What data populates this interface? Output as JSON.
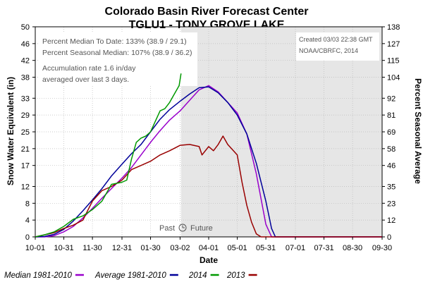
{
  "header": {
    "title": "Colorado Basin River Forecast Center",
    "subtitle": "TGLU1 - TONY GROVE LAKE"
  },
  "info_left": {
    "line1": "Percent Median To Date: 133% (38.9 / 29.1)",
    "line2": "Percent Seasonal Median: 107% (38.9 / 36.2)",
    "line3": "Accumulation rate 1.6 in/day",
    "line4": "averaged over last 3 days."
  },
  "info_right": {
    "line1": "Created 03/03 22:38 GMT",
    "line2": "NOAA/CBRFC, 2014"
  },
  "past_future": {
    "past": "Past",
    "future": "Future"
  },
  "colors": {
    "median": "#9900cc",
    "average": "#000099",
    "2014": "#009900",
    "2013": "#990000",
    "future_shade": "#e6e6e6"
  },
  "chart_data": {
    "type": "line",
    "xlabel": "Date",
    "ylabel": "Snow Water Equivalent (in)",
    "y2label": "Percent Seasonal Average",
    "xlim": [
      "10-01",
      "09-30"
    ],
    "ylim": [
      0,
      50
    ],
    "y2lim": [
      0,
      138
    ],
    "x_ticks": [
      "10-01",
      "10-31",
      "11-30",
      "12-31",
      "01-30",
      "03-02",
      "04-01",
      "05-01",
      "05-31",
      "07-01",
      "07-31",
      "08-30",
      "09-30"
    ],
    "x_tick_days": [
      0,
      30,
      60,
      91,
      121,
      152,
      182,
      212,
      242,
      273,
      303,
      333,
      364
    ],
    "y_ticks": [
      0,
      4,
      8,
      12,
      17,
      21,
      25,
      29,
      33,
      38,
      42,
      46,
      50
    ],
    "y2_ticks": [
      0,
      12,
      23,
      35,
      46,
      58,
      69,
      81,
      92,
      104,
      115,
      127,
      138
    ],
    "past_future_split": "03-03",
    "grid": true,
    "legend_position": "bottom",
    "series": [
      {
        "name": "Median 1981-2010",
        "x": [
          "10-01",
          "10-11",
          "10-21",
          "10-31",
          "11-10",
          "11-20",
          "11-30",
          "12-10",
          "12-20",
          "12-31",
          "01-10",
          "01-20",
          "01-30",
          "02-09",
          "02-19",
          "03-02",
          "03-12",
          "03-22",
          "04-01",
          "04-11",
          "04-21",
          "05-01",
          "05-11",
          "05-21",
          "05-31",
          "06-06",
          "06-10",
          "06-20",
          "06-30",
          "07-10",
          "07-20",
          "07-30",
          "08-09",
          "08-19",
          "08-29",
          "09-08",
          "09-18",
          "09-30"
        ],
        "y": [
          0,
          0,
          0.3,
          1.2,
          2.5,
          4.5,
          6.8,
          9.2,
          11.5,
          14,
          16.5,
          19.5,
          22.5,
          25.3,
          27.8,
          30,
          32.5,
          35,
          36,
          34.5,
          32,
          29.5,
          24.5,
          15,
          3,
          0,
          0,
          0,
          0,
          0,
          0,
          0,
          0,
          0,
          0,
          0,
          0,
          0
        ]
      },
      {
        "name": "Average 1981-2010",
        "x": [
          "10-01",
          "10-11",
          "10-21",
          "10-31",
          "11-10",
          "11-20",
          "11-30",
          "12-10",
          "12-20",
          "12-31",
          "01-10",
          "01-20",
          "01-30",
          "02-09",
          "02-19",
          "03-02",
          "03-12",
          "03-22",
          "04-01",
          "04-11",
          "04-21",
          "05-01",
          "05-11",
          "05-21",
          "05-31",
          "06-06",
          "06-10",
          "06-20",
          "06-30",
          "07-10",
          "07-20",
          "07-30",
          "08-09",
          "08-19",
          "08-29",
          "09-08",
          "09-18",
          "09-30"
        ],
        "y": [
          0,
          0.1,
          0.6,
          1.8,
          3.8,
          6.2,
          8.8,
          11.5,
          14.5,
          17.3,
          19.8,
          22,
          25,
          28,
          30.3,
          32.3,
          34,
          35.5,
          35.7,
          34.3,
          32,
          29,
          24.5,
          17.5,
          8.5,
          2,
          0,
          0,
          0,
          0,
          0,
          0,
          0,
          0,
          0,
          0,
          0,
          0
        ]
      },
      {
        "name": "2014",
        "x": [
          "10-01",
          "10-11",
          "10-21",
          "10-31",
          "11-10",
          "11-20",
          "11-30",
          "12-10",
          "12-20",
          "12-31",
          "01-05",
          "01-10",
          "01-15",
          "01-20",
          "01-25",
          "01-30",
          "02-04",
          "02-09",
          "02-14",
          "02-19",
          "02-24",
          "03-01",
          "03-03"
        ],
        "y": [
          0,
          0.5,
          1.2,
          2.5,
          4.2,
          5,
          6.5,
          8.5,
          12.5,
          13,
          13.5,
          18.5,
          22.5,
          23.5,
          24,
          25,
          27.5,
          30,
          30.5,
          32,
          34,
          36,
          38.9
        ]
      },
      {
        "name": "2013",
        "x": [
          "10-01",
          "10-11",
          "10-21",
          "10-31",
          "11-10",
          "11-20",
          "11-30",
          "12-10",
          "12-20",
          "12-31",
          "01-10",
          "01-20",
          "01-30",
          "02-09",
          "02-19",
          "03-02",
          "03-12",
          "03-22",
          "03-25",
          "04-01",
          "04-06",
          "04-11",
          "04-16",
          "04-21",
          "05-01",
          "05-06",
          "05-11",
          "05-16",
          "05-21",
          "05-26",
          "06-01",
          "06-20",
          "07-20",
          "08-20",
          "09-30"
        ],
        "y": [
          0,
          0.5,
          1,
          2,
          2.8,
          4,
          8.5,
          11,
          12,
          13.5,
          16,
          17,
          18,
          19.5,
          20.5,
          21.8,
          22,
          21.5,
          19.5,
          21.5,
          20.5,
          22,
          24,
          22,
          19.5,
          13,
          7.5,
          3.5,
          0.7,
          0,
          0,
          0,
          0,
          0,
          0
        ]
      }
    ]
  }
}
